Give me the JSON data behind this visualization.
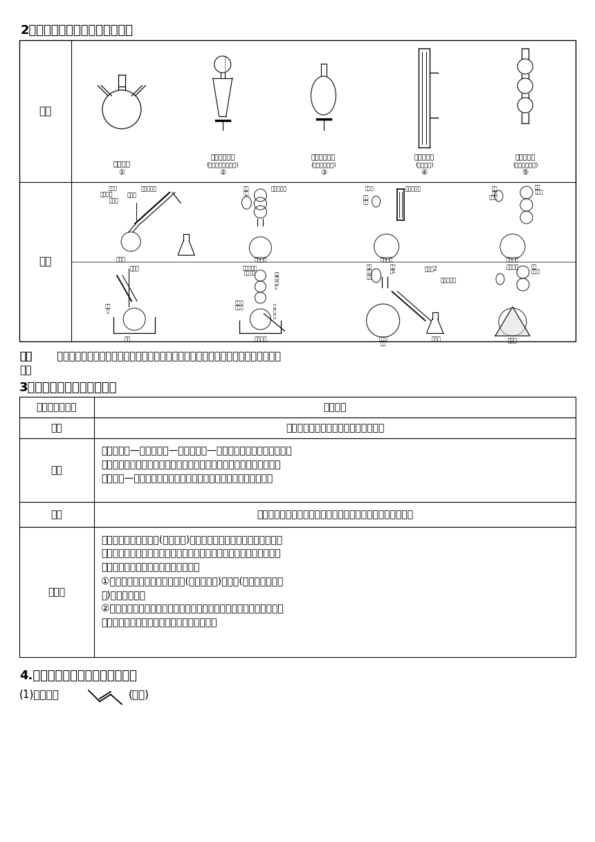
{
  "bg_color": "#ffffff",
  "title2": "2．有机物制备常考的仪器、装置",
  "note_title": "注意",
  "note_body1": "  球形冷凝管只能用于冷凝回流，直形冷凝管既能用于冷凝回流，又能用于冷凝收集馏",
  "note_body2": "分。",
  "section3_title": "3．常见有机物的分离与提纯",
  "table_headers": [
    "分离、提纯方法",
    "适用范围"
  ],
  "table_rows": [
    [
      "蒸馏",
      "适用于沸点不同的互溶液体混合物分离"
    ],
    [
      "萃取",
      "萃取包括液—液萃取和固—液萃取。液—液萃取是利用待分离组分在两\n种不互溶的溶剂中的溶解度不同，将其从一种溶剂转移到另一种溶剂的\n过程；固—液萃取是用溶剂从固体物质中溶解出待分离组分的过程"
    ],
    [
      "分液",
      "适用于两种互不相溶的液体混合物分离。萃取之后往往需分液"
    ],
    [
      "重结晶",
      "重结晶是将晶体用溶剂(如蒸馏水)溶解，经过滤、蒸发、冷却等步骤后\n再次使之析出，以得到更加纯净的晶体的纯化方法。重结晶常用于提纯\n固态化合物。重结晶溶剂选择的要求；\n①杂质在所选溶剂中溶解度很小(使杂质析出)或很大(使杂质留在母液\n中)，易于除去；\n②被提纯的物质在所选溶剂中的溶解度受温度影响较大，升温时溶解度\n增大，降温时溶解度减小，冷却后易结晶析出"
    ]
  ],
  "section4_title": "4.有机化合物中常见官能团的检验",
  "instr_labels": [
    "三颈烧瓶",
    "恒压滴液漏斗",
    "梨形分液漏斗",
    "直形冷凝管",
    "球形冷凝管"
  ],
  "instr_sublabels": [
    "①",
    "(便于液体顺利流下)\n②",
    "(用于萃取分液)\n③",
    "(用于蒸馏)\n④",
    "(用于冷凝回流)\n⑤"
  ],
  "zhuangzhi_label": "装置",
  "yiqi_label": "仪器"
}
